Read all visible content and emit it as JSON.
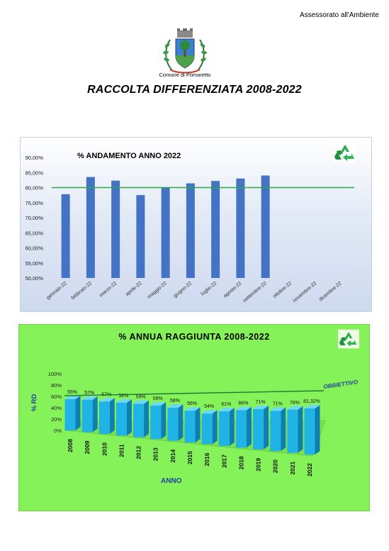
{
  "header": {
    "department": "Assessorato all'Ambiente",
    "municipality": "Comune di Pomaretto",
    "title": "RACCOLTA DIFFERENZIATA 2008-2022"
  },
  "icons": {
    "emblem": "municipal-coat-of-arms-icon",
    "recycle": "recycle-icon"
  },
  "chart_data": [
    {
      "type": "bar",
      "title": "% ANDAMENTO ANNO 2022",
      "categories": [
        "gennaio-22",
        "febbraio-22",
        "marzo-22",
        "aprile-22",
        "maggio-22",
        "giugno-22",
        "luglio-22",
        "agosto-22",
        "settembre-22",
        "ottobre-22",
        "novembre-22",
        "dicembre-22"
      ],
      "values": [
        77.8,
        83.5,
        82.3,
        77.5,
        80.0,
        81.4,
        82.2,
        83.0,
        84.0,
        null,
        null,
        null
      ],
      "ylim": [
        50,
        90
      ],
      "yticks": [
        "50,00%",
        "55,00%",
        "60,00%",
        "65,00%",
        "70,00%",
        "75,00%",
        "80,00%",
        "85,00%",
        "90,00%"
      ],
      "target_line": 80,
      "bar_color": "#4472c4",
      "target_color": "#2ba84a",
      "grid": false
    },
    {
      "type": "bar",
      "title": "% ANNUA RAGGIUNTA 2008-2022",
      "categories": [
        "2008",
        "2009",
        "2010",
        "2011",
        "2012",
        "2013",
        "2014",
        "2015",
        "2016",
        "2017",
        "2018",
        "2019",
        "2020",
        "2021",
        "2022"
      ],
      "values": [
        55,
        57,
        57,
        58,
        59,
        59,
        58,
        56,
        54,
        61,
        66,
        71,
        71,
        76,
        81.32
      ],
      "data_labels": [
        "55%",
        "57%",
        "57%",
        "58%",
        "59%",
        "59%",
        "58%",
        "56%",
        "54%",
        "61%",
        "66%",
        "71%",
        "71%",
        "76%",
        "81,32%"
      ],
      "ylim": [
        0,
        100
      ],
      "yticks": [
        "0%",
        "20%",
        "40%",
        "60%",
        "80%",
        "100%"
      ],
      "xlabel": "ANNO",
      "ylabel": "% RD",
      "target_label": "OBBIETTIVO",
      "target_value": 65,
      "bar_color": "#1fb3e6",
      "grid": false
    }
  ]
}
